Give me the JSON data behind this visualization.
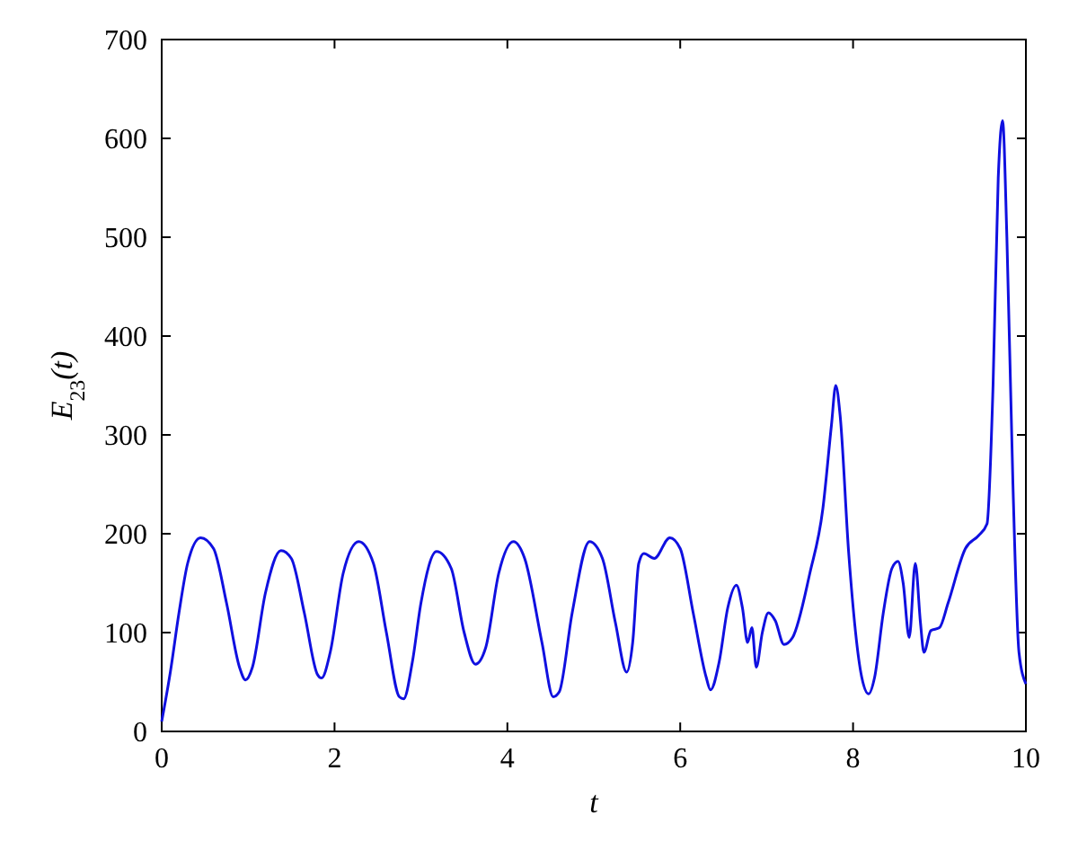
{
  "chart_data": {
    "type": "line",
    "xlabel": "t",
    "ylabel": "E$_{23}$(t)",
    "xlim": [
      0,
      10
    ],
    "ylim": [
      0,
      700
    ],
    "xticks": [
      0,
      2,
      4,
      6,
      8,
      10
    ],
    "yticks": [
      0,
      100,
      200,
      300,
      400,
      500,
      600,
      700
    ],
    "grid": false,
    "marker": "none",
    "line_style": "solid",
    "series": [
      {
        "color": "#1010e0",
        "x": [
          0,
          0.1,
          0.2,
          0.3,
          0.45,
          0.6,
          0.75,
          0.9,
          0.97,
          1.05,
          1.2,
          1.38,
          1.5,
          1.65,
          1.8,
          1.85,
          1.95,
          2.1,
          2.28,
          2.45,
          2.6,
          2.75,
          2.8,
          2.9,
          3.0,
          3.18,
          3.35,
          3.5,
          3.63,
          3.75,
          3.9,
          4.07,
          4.2,
          4.4,
          4.53,
          4.6,
          4.75,
          4.95,
          5.1,
          5.25,
          5.38,
          5.45,
          5.52,
          5.58,
          5.7,
          5.88,
          6.0,
          6.15,
          6.3,
          6.35,
          6.45,
          6.55,
          6.65,
          6.72,
          6.78,
          6.83,
          6.88,
          6.95,
          7.02,
          7.1,
          7.2,
          7.3,
          7.5,
          7.65,
          7.75,
          7.8,
          7.85,
          7.95,
          8.1,
          8.18,
          8.25,
          8.35,
          8.45,
          8.52,
          8.58,
          8.65,
          8.72,
          8.78,
          8.82,
          8.9,
          9.0,
          9.1,
          9.3,
          9.45,
          9.55,
          9.62,
          9.68,
          9.73,
          9.78,
          9.85,
          9.92,
          10
        ],
        "values": [
          10,
          60,
          120,
          170,
          196,
          185,
          130,
          65,
          52,
          65,
          140,
          183,
          175,
          120,
          58,
          54,
          80,
          160,
          192,
          170,
          100,
          35,
          33,
          70,
          130,
          182,
          165,
          100,
          68,
          85,
          160,
          192,
          175,
          90,
          35,
          40,
          120,
          192,
          175,
          110,
          60,
          90,
          170,
          180,
          175,
          196,
          185,
          120,
          55,
          42,
          70,
          125,
          148,
          125,
          90,
          105,
          65,
          100,
          120,
          112,
          88,
          95,
          160,
          225,
          310,
          350,
          320,
          180,
          55,
          38,
          55,
          120,
          165,
          172,
          150,
          95,
          170,
          110,
          80,
          102,
          105,
          130,
          185,
          198,
          210,
          350,
          560,
          618,
          500,
          250,
          80,
          48
        ]
      }
    ]
  }
}
